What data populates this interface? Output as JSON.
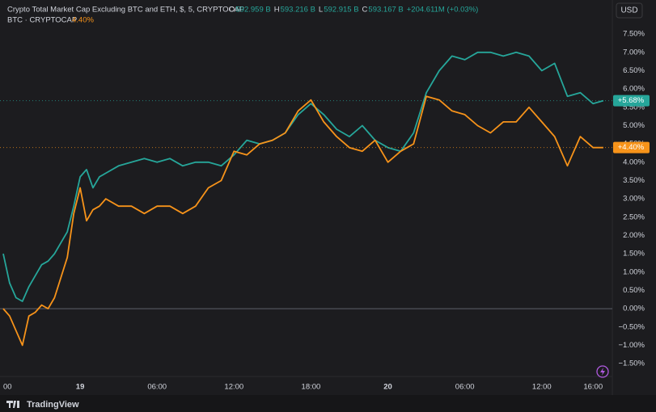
{
  "chart_data": {
    "type": "line",
    "header": {
      "title": "Crypto Total Market Cap Excluding BTC and ETH, $, 5, CRYPTOCAP",
      "o_label": "O",
      "o": "592.959 B",
      "h_label": "H",
      "h": "593.216 B",
      "l_label": "L",
      "l": "592.915 B",
      "c_label": "C",
      "c": "593.167 B",
      "change": "+204.611M (+0.03%)",
      "compare": "BTC · CRYPTOCAP",
      "compare_value": "4.40%"
    },
    "currency": "USD",
    "brand": "TradingView",
    "x": [
      0,
      0.5,
      1,
      1.5,
      2,
      2.5,
      3,
      3.5,
      4,
      5,
      5.5,
      6,
      6.5,
      7,
      7.5,
      8,
      9,
      10,
      11,
      12,
      13,
      14,
      15,
      16,
      17,
      18,
      19,
      20,
      21,
      22,
      23,
      24,
      25,
      26,
      27,
      28,
      29,
      30,
      31,
      32,
      33,
      34,
      35,
      36,
      37,
      38,
      39,
      40,
      41,
      42,
      43,
      44,
      45,
      46,
      46.8
    ],
    "series": [
      {
        "name": "Crypto Total Market Cap Excluding BTC and ETH",
        "color": "#26a69a",
        "values": [
          1.5,
          0.7,
          0.3,
          0.2,
          0.6,
          0.9,
          1.2,
          1.3,
          1.5,
          2.1,
          2.8,
          3.6,
          3.8,
          3.3,
          3.6,
          3.7,
          3.9,
          4.0,
          4.1,
          4.0,
          4.1,
          3.9,
          4.0,
          4.0,
          3.9,
          4.2,
          4.6,
          4.5,
          4.6,
          4.8,
          5.3,
          5.6,
          5.3,
          4.9,
          4.7,
          5.0,
          4.6,
          4.4,
          4.3,
          4.8,
          5.9,
          6.5,
          6.9,
          6.8,
          7.0,
          7.0,
          6.9,
          7.0,
          6.9,
          6.5,
          6.7,
          5.8,
          5.9,
          5.6,
          5.68
        ],
        "badge": {
          "value": 5.68,
          "label": "+5.68%"
        }
      },
      {
        "name": "BTC",
        "color": "#f7931a",
        "values": [
          0.0,
          -0.2,
          -0.6,
          -1.0,
          -0.2,
          -0.1,
          0.1,
          0.0,
          0.3,
          1.4,
          2.6,
          3.3,
          2.4,
          2.7,
          2.8,
          3.0,
          2.8,
          2.8,
          2.6,
          2.8,
          2.8,
          2.6,
          2.8,
          3.3,
          3.5,
          4.3,
          4.2,
          4.5,
          4.6,
          4.8,
          5.4,
          5.7,
          5.1,
          4.7,
          4.4,
          4.3,
          4.6,
          4.0,
          4.3,
          4.5,
          5.8,
          5.7,
          5.4,
          5.3,
          5.0,
          4.8,
          5.1,
          5.1,
          5.5,
          5.1,
          4.7,
          3.9,
          4.7,
          4.4,
          4.4
        ],
        "badge": {
          "value": 4.4,
          "label": "+4.40%"
        }
      }
    ],
    "xlim": [
      -0.25,
      47.5
    ],
    "xticks": [
      {
        "value": 0,
        "label": "00"
      },
      {
        "value": 6,
        "label": "19"
      },
      {
        "value": 12,
        "label": "06:00"
      },
      {
        "value": 18,
        "label": "12:00"
      },
      {
        "value": 24,
        "label": "18:00"
      },
      {
        "value": 30,
        "label": "20"
      },
      {
        "value": 36,
        "label": "06:00"
      },
      {
        "value": 42,
        "label": "12:00"
      },
      {
        "value": 46,
        "label": "16:00"
      }
    ],
    "ylim": [
      -2.27,
      8.43
    ],
    "yticks": [
      {
        "value": 7.5,
        "label": "7.50%"
      },
      {
        "value": 7,
        "label": "7.00%"
      },
      {
        "value": 6.5,
        "label": "6.50%"
      },
      {
        "value": 6,
        "label": "6.00%"
      },
      {
        "value": 5.5,
        "label": "5.50%"
      },
      {
        "value": 5,
        "label": "5.00%"
      },
      {
        "value": 4.5,
        "label": "4.50%"
      },
      {
        "value": 4,
        "label": "4.00%"
      },
      {
        "value": 3.5,
        "label": "3.50%"
      },
      {
        "value": 3,
        "label": "3.00%"
      },
      {
        "value": 2.5,
        "label": "2.50%"
      },
      {
        "value": 2,
        "label": "2.00%"
      },
      {
        "value": 1.5,
        "label": "1.50%"
      },
      {
        "value": 1,
        "label": "1.00%"
      },
      {
        "value": 0.5,
        "label": "0.50%"
      },
      {
        "value": 0,
        "label": "0.00%"
      },
      {
        "value": -0.5,
        "label": "−0.50%"
      },
      {
        "value": -1,
        "label": "−1.00%"
      },
      {
        "value": -1.5,
        "label": "−1.50%"
      }
    ],
    "zero_line": 0,
    "grid": false
  }
}
